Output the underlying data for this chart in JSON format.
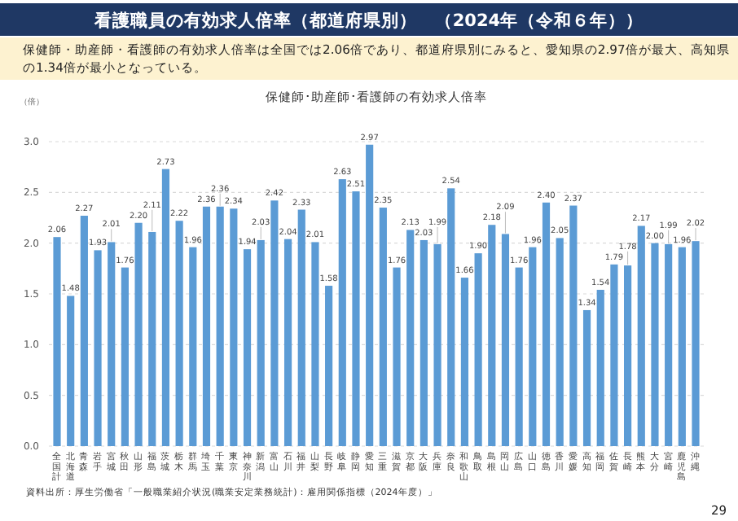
{
  "chart_data": {
    "type": "bar",
    "title": "看護職員の有効求人倍率（都道府県別）　（2024年（令和６年））",
    "subtitle": "保健師・助産師・看護師の有効求人倍率は全国では2.06倍であり、都道府県別にみると、愛知県の2.97倍が最大、高知県の1.34倍が最小となっている。",
    "ylabel": "（倍）",
    "annotations": [
      "保健師･助産師･看護師の有効求人倍率",
      "資料出所：厚生労働省「一般職業紹介状況(職業安定業務統計)：雇用関係指標（2024年度）」",
      "29"
    ],
    "categories": [
      "全国計",
      "北海道",
      "青森",
      "岩手",
      "宮城",
      "秋田",
      "山形",
      "福島",
      "茨城",
      "栃木",
      "群馬",
      "埼玉",
      "千葉",
      "東京",
      "神奈川",
      "新潟",
      "富山",
      "石川",
      "福井",
      "山梨",
      "長野",
      "岐阜",
      "静岡",
      "愛知",
      "三重",
      "滋賀",
      "京都",
      "大阪",
      "兵庫",
      "奈良",
      "和歌山",
      "鳥取",
      "島根",
      "岡山",
      "広島",
      "山口",
      "徳島",
      "香川",
      "愛媛",
      "高知",
      "福岡",
      "佐賀",
      "長崎",
      "熊本",
      "大分",
      "宮崎",
      "鹿児島",
      "沖縄"
    ],
    "values": [
      2.06,
      1.48,
      2.27,
      1.93,
      2.01,
      1.76,
      2.2,
      2.11,
      2.73,
      2.22,
      1.96,
      2.36,
      2.36,
      2.34,
      1.94,
      2.03,
      2.42,
      2.04,
      2.33,
      2.01,
      1.58,
      2.63,
      2.51,
      2.97,
      2.35,
      1.76,
      2.13,
      2.03,
      1.99,
      2.54,
      1.66,
      1.9,
      2.18,
      2.09,
      1.76,
      1.96,
      2.4,
      2.05,
      2.37,
      1.34,
      1.54,
      1.79,
      1.78,
      2.17,
      2.0,
      1.99,
      1.96,
      2.02
    ],
    "value_labels": [
      "2.06",
      "1.48",
      "2.27",
      "1.93",
      "2.01",
      "1.76",
      "2.20",
      "2.11",
      "2.73",
      "2.22",
      "1.96",
      "2.36",
      "2.36",
      "2.34",
      "1.94",
      "2.03",
      "2.42",
      "2.04",
      "2.33",
      "2.01",
      "1.58",
      "2.63",
      "2.51",
      "2.97",
      "2.35",
      "1.76",
      "2.13",
      "2.03",
      "1.99",
      "2.54",
      "1.66",
      "1.90",
      "2.18",
      "2.09",
      "1.76",
      "1.96",
      "2.40",
      "2.05",
      "2.37",
      "1.34",
      "1.54",
      "1.79",
      "1.78",
      "2.17",
      "2.00",
      "1.99",
      "1.96",
      "2.02"
    ],
    "color": "#5b9bd5",
    "ylim": [
      0,
      3
    ],
    "yticks": [
      {
        "value": 0,
        "label": "0.0"
      },
      {
        "value": 0.5,
        "label": "0.5"
      },
      {
        "value": 1,
        "label": "1.0"
      },
      {
        "value": 1.5,
        "label": "1.5"
      },
      {
        "value": 2,
        "label": "2.0"
      },
      {
        "value": 2.5,
        "label": "2.5"
      },
      {
        "value": 3,
        "label": "3.0"
      }
    ],
    "grid": "y"
  }
}
